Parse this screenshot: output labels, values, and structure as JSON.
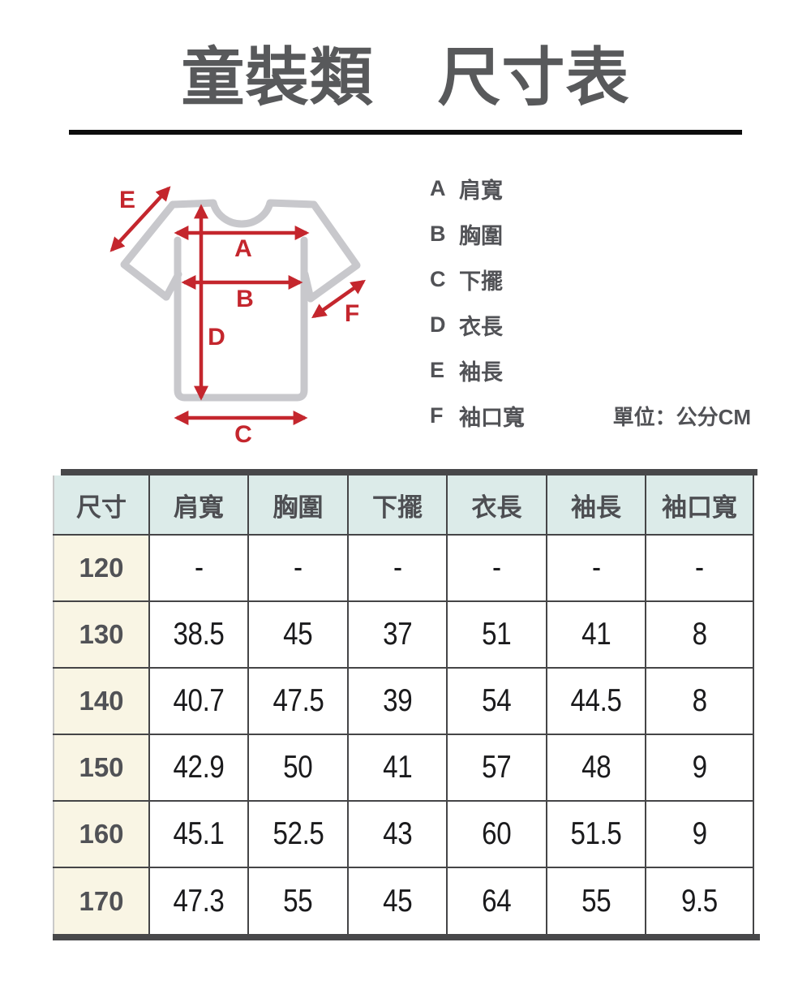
{
  "title": "童裝類　尺寸表",
  "diagram": {
    "labels": {
      "A": "A",
      "B": "B",
      "C": "C",
      "D": "D",
      "E": "E",
      "F": "F"
    }
  },
  "legend": {
    "items": [
      {
        "letter": "A",
        "label": "肩寬"
      },
      {
        "letter": "B",
        "label": "胸圍"
      },
      {
        "letter": "C",
        "label": "下擺"
      },
      {
        "letter": "D",
        "label": "衣長"
      },
      {
        "letter": "E",
        "label": "袖長"
      },
      {
        "letter": "F",
        "label": "袖口寬"
      }
    ],
    "unit_note": "單位：公分CM"
  },
  "table": {
    "columns": [
      "尺寸",
      "肩寬",
      "胸圍",
      "下擺",
      "衣長",
      "袖長",
      "袖口寬"
    ],
    "rows": [
      {
        "size": "120",
        "values": [
          "-",
          "-",
          "-",
          "-",
          "-",
          "-"
        ]
      },
      {
        "size": "130",
        "values": [
          "38.5",
          "45",
          "37",
          "51",
          "41",
          "8"
        ]
      },
      {
        "size": "140",
        "values": [
          "40.7",
          "47.5",
          "39",
          "54",
          "44.5",
          "8"
        ]
      },
      {
        "size": "150",
        "values": [
          "42.9",
          "50",
          "41",
          "57",
          "48",
          "9"
        ]
      },
      {
        "size": "160",
        "values": [
          "45.1",
          "52.5",
          "43",
          "60",
          "51.5",
          "9"
        ]
      },
      {
        "size": "170",
        "values": [
          "47.3",
          "55",
          "45",
          "64",
          "55",
          "9.5"
        ]
      }
    ]
  },
  "colors": {
    "accent_red": "#c4262d",
    "tshirt_gray": "#c8c8cc",
    "header_bg": "#dcebe9",
    "size_col_bg": "#f9f5e4",
    "bar_dark": "#48484a",
    "border_dark": "#454547",
    "text_dark": "#1a1a1c",
    "text_gray": "#515256",
    "title_gray": "#58595b"
  }
}
